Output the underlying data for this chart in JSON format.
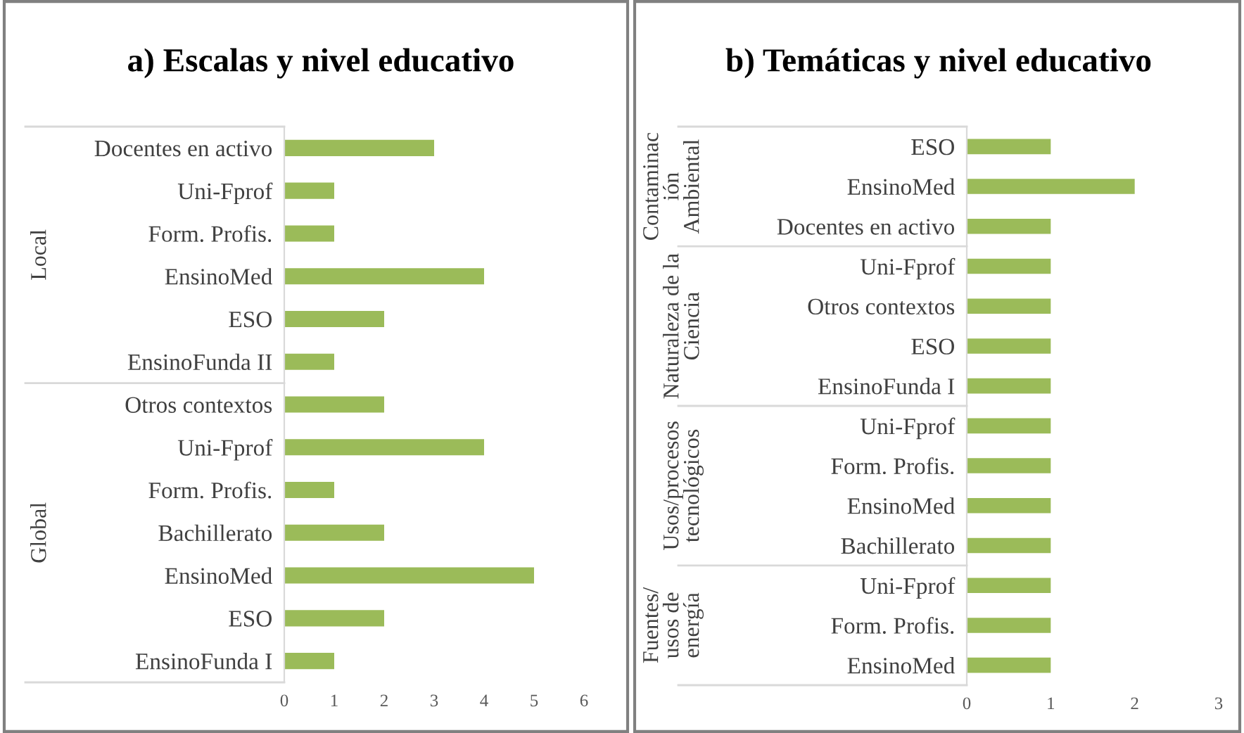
{
  "chart_data": [
    {
      "type": "bar",
      "orientation": "horizontal",
      "title": "a) Escalas y nivel educativo",
      "ylabel": "Local",
      "categories": [
        "Docentes en activo",
        "Uni-Fprof",
        "Form. Profis.",
        "EnsinoMed",
        "ESO",
        "EnsinoFunda II"
      ],
      "values": [
        3,
        1,
        1,
        4,
        2,
        1
      ],
      "color": "#9bbb59",
      "xlim": [
        0,
        6
      ],
      "xticks": [
        0,
        1,
        2,
        3,
        4,
        5,
        6
      ],
      "tick_labels": "y",
      "grid": false
    },
    {
      "type": "bar",
      "orientation": "horizontal",
      "ylabel": "Global",
      "categories": [
        "Otros contextos",
        "Uni-Fprof",
        "Form. Profis.",
        "Bachillerato",
        "EnsinoMed",
        "ESO",
        "EnsinoFunda I"
      ],
      "values": [
        2,
        4,
        1,
        2,
        5,
        2,
        1
      ],
      "color": "#9bbb59",
      "xlim": [
        0,
        6
      ],
      "xticks": [
        0,
        1,
        2,
        3,
        4,
        5,
        6
      ],
      "grid": false
    },
    {
      "type": "bar",
      "orientation": "horizontal",
      "title": "b) Temáticas y nivel educativo",
      "ylabel": "Contaminac\nión\nAmbiental",
      "categories": [
        "ESO",
        "EnsinoMed",
        "Docentes en activo"
      ],
      "values": [
        1,
        2,
        1
      ],
      "color": "#9bbb59",
      "xlim": [
        0,
        3
      ],
      "xticks": [
        0,
        1,
        2,
        3
      ],
      "tick_labels": "y",
      "grid": false
    },
    {
      "type": "bar",
      "orientation": "horizontal",
      "ylabel": "Naturaleza de la\nCiencia",
      "categories": [
        "Uni-Fprof",
        "Otros contextos",
        "ESO",
        "EnsinoFunda I"
      ],
      "values": [
        1,
        1,
        1,
        1
      ],
      "color": "#9bbb59",
      "xlim": [
        0,
        3
      ],
      "xticks": [
        0,
        1,
        2,
        3
      ],
      "tick_labels": "y",
      "grid": false
    },
    {
      "type": "bar",
      "orientation": "horizontal",
      "ylabel": "Usos/procesos\ntecnológicos",
      "categories": [
        "Uni-Fprof",
        "Form. Profis.",
        "EnsinoMed",
        "Bachillerato"
      ],
      "values": [
        1,
        1,
        1,
        1
      ],
      "color": "#9bbb59",
      "xlim": [
        0,
        3
      ],
      "xticks": [
        0,
        1,
        2,
        3
      ],
      "tick_labels": "y",
      "grid": false
    },
    {
      "type": "bar",
      "orientation": "horizontal",
      "ylabel": "Fuentes/\nusos de\nenergía",
      "categories": [
        "Uni-Fprof",
        "Form. Profis.",
        "EnsinoMed"
      ],
      "values": [
        1,
        1,
        1
      ],
      "color": "#9bbb59",
      "xlim": [
        0,
        3
      ],
      "xticks": [
        0,
        1,
        2,
        3
      ],
      "grid": false
    }
  ]
}
